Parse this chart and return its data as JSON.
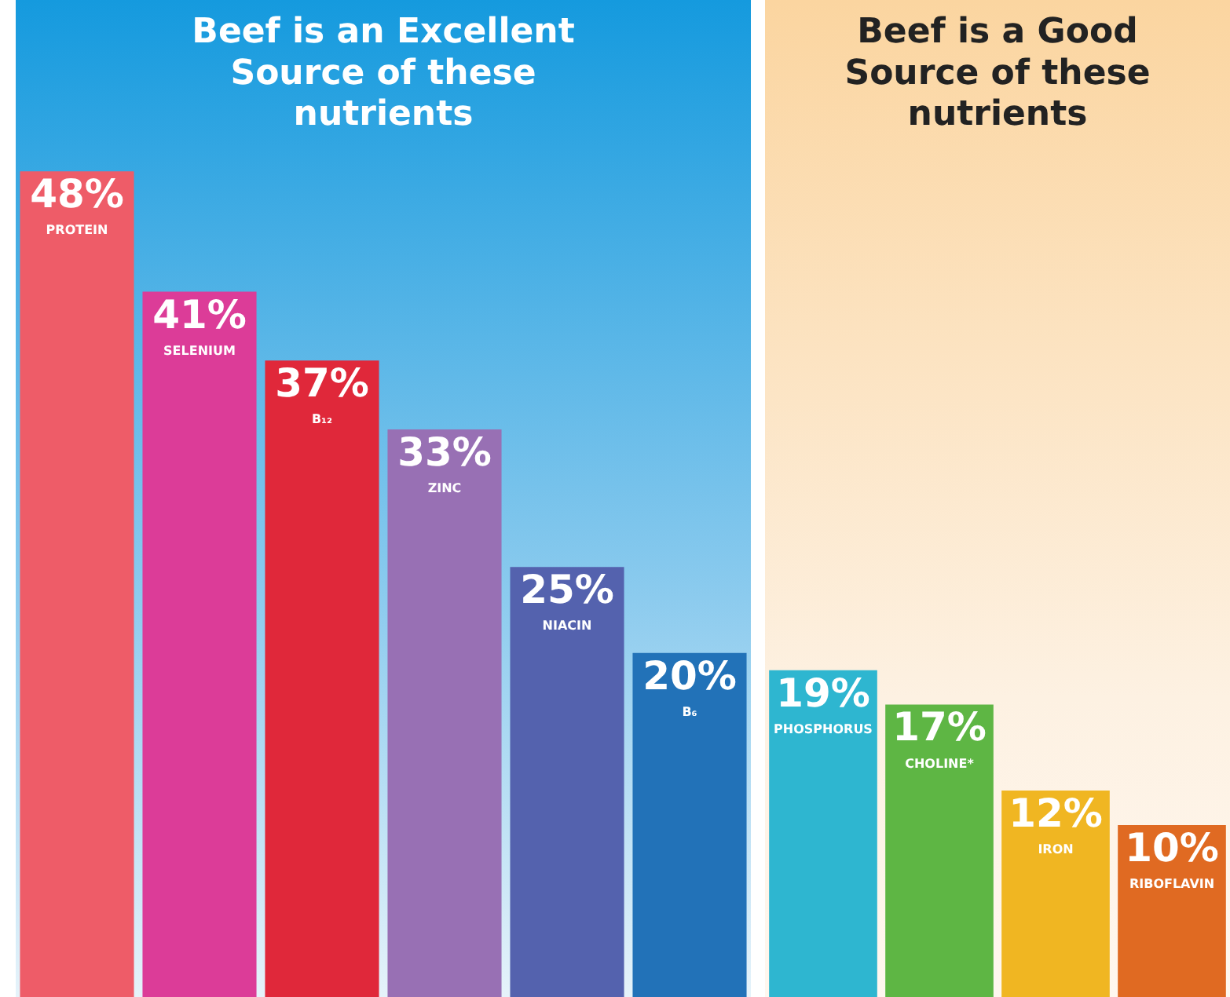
{
  "chart_data": [
    {
      "type": "bar",
      "title": "Beef is an Excellent Source of these nutrients",
      "categories": [
        "PROTEIN",
        "SELENIUM",
        "B₁₂",
        "ZINC",
        "NIACIN",
        "B₆"
      ],
      "values": [
        48,
        41,
        37,
        33,
        25,
        20
      ],
      "value_labels": [
        "48%",
        "41%",
        "37%",
        "33%",
        "25%",
        "20%"
      ],
      "colors": [
        "#ee5c68",
        "#dc3c98",
        "#e0283a",
        "#9870b4",
        "#5462ae",
        "#2272b8"
      ]
    },
    {
      "type": "bar",
      "title": "Beef is a Good Source of these nutrients",
      "categories": [
        "PHOSPHORUS",
        "CHOLINE*",
        "IRON",
        "RIBOFLAVIN"
      ],
      "values": [
        19,
        17,
        12,
        10
      ],
      "value_labels": [
        "19%",
        "17%",
        "12%",
        "10%"
      ],
      "colors": [
        "#2eb6d0",
        "#5eb644",
        "#f0b622",
        "#e06a22"
      ]
    }
  ]
}
